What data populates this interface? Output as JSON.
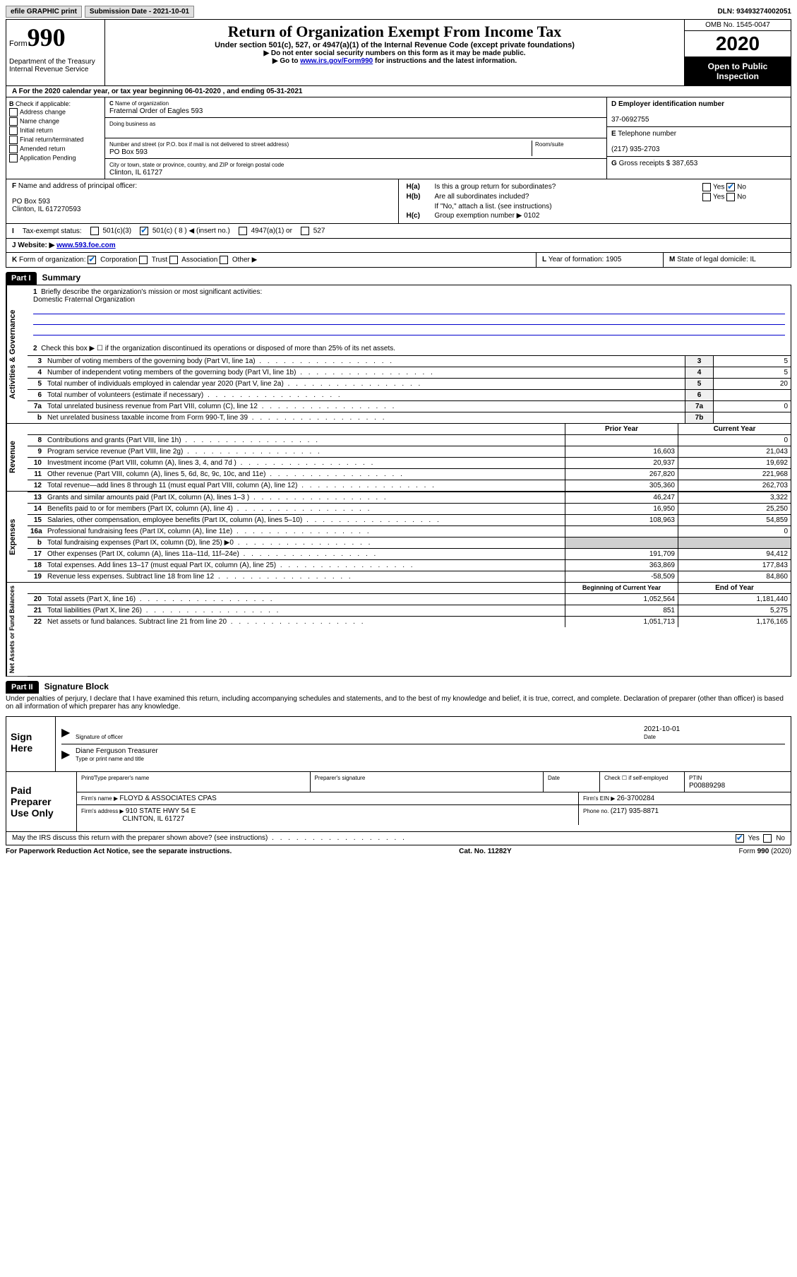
{
  "top": {
    "efile": "efile GRAPHIC print",
    "subdate_label": "Submission Date - ",
    "subdate": "2021-10-01",
    "dln_label": "DLN: ",
    "dln": "93493274002051"
  },
  "header": {
    "form_label": "Form",
    "form_num": "990",
    "dept": "Department of the Treasury\nInternal Revenue Service",
    "title": "Return of Organization Exempt From Income Tax",
    "sub": "Under section 501(c), 527, or 4947(a)(1) of the Internal Revenue Code (except private foundations)",
    "instr1": "Do not enter social security numbers on this form as it may be made public.",
    "instr2_pre": "Go to ",
    "instr2_link": "www.irs.gov/Form990",
    "instr2_post": " for instructions and the latest information.",
    "omb": "OMB No. 1545-0047",
    "year": "2020",
    "open": "Open to Public Inspection"
  },
  "A": {
    "text": "For the 2020 calendar year, or tax year beginning 06-01-2020    , and ending 05-31-2021"
  },
  "B": {
    "label": "Check if applicable:",
    "opts": [
      "Address change",
      "Name change",
      "Initial return",
      "Final return/terminated",
      "Amended return",
      "Application Pending"
    ]
  },
  "C": {
    "name_label": "Name of organization",
    "name": "Fraternal Order of Eagles 593",
    "dba_label": "Doing business as",
    "street_label": "Number and street (or P.O. box if mail is not delivered to street address)",
    "room_label": "Room/suite",
    "street": "PO Box 593",
    "city_label": "City or town, state or province, country, and ZIP or foreign postal code",
    "city": "Clinton, IL  61727"
  },
  "D": {
    "label": "Employer identification number",
    "val": "37-0692755"
  },
  "E": {
    "label": "Telephone number",
    "val": "(217) 935-2703"
  },
  "G": {
    "label": "Gross receipts $ ",
    "val": "387,653"
  },
  "F": {
    "label": "Name and address of principal officer:",
    "addr1": "PO Box 593",
    "addr2": "Clinton, IL  617270593"
  },
  "H": {
    "a": "Is this a group return for subordinates?",
    "b": "Are all subordinates included?",
    "b_note": "If \"No,\" attach a list. (see instructions)",
    "c": "Group exemption number ▶   0102",
    "yes": "Yes",
    "no": "No"
  },
  "I": {
    "label": "Tax-exempt status:",
    "c3": "501(c)(3)",
    "c": "501(c) ( 8 ) ◀ (insert no.)",
    "a1": "4947(a)(1) or",
    "s527": "527"
  },
  "J": {
    "label": "Website: ▶ ",
    "val": "www.593.foe.com"
  },
  "K": {
    "label": "Form of organization:",
    "corp": "Corporation",
    "trust": "Trust",
    "assoc": "Association",
    "other": "Other ▶"
  },
  "L": {
    "label": "Year of formation: ",
    "val": "1905"
  },
  "M": {
    "label": "State of legal domicile: ",
    "val": "IL"
  },
  "part1": {
    "header": "Part I",
    "title": "Summary",
    "q1": "Briefly describe the organization's mission or most significant activities:",
    "q1_ans": "Domestic Fraternal Organization",
    "q2": "Check this box ▶ ☐  if the organization discontinued its operations or disposed of more than 25% of its net assets.",
    "lines": [
      {
        "n": "3",
        "d": "Number of voting members of the governing body (Part VI, line 1a)",
        "box": "3",
        "v": "5"
      },
      {
        "n": "4",
        "d": "Number of independent voting members of the governing body (Part VI, line 1b)",
        "box": "4",
        "v": "5"
      },
      {
        "n": "5",
        "d": "Total number of individuals employed in calendar year 2020 (Part V, line 2a)",
        "box": "5",
        "v": "20"
      },
      {
        "n": "6",
        "d": "Total number of volunteers (estimate if necessary)",
        "box": "6",
        "v": ""
      },
      {
        "n": "7a",
        "d": "Total unrelated business revenue from Part VIII, column (C), line 12",
        "box": "7a",
        "v": "0"
      },
      {
        "n": "b",
        "d": "Net unrelated business taxable income from Form 990-T, line 39",
        "box": "7b",
        "v": ""
      }
    ],
    "col_prior": "Prior Year",
    "col_current": "Current Year",
    "col_beg": "Beginning of Current Year",
    "col_end": "End of Year",
    "rev": [
      {
        "n": "8",
        "d": "Contributions and grants (Part VIII, line 1h)",
        "p": "",
        "c": "0"
      },
      {
        "n": "9",
        "d": "Program service revenue (Part VIII, line 2g)",
        "p": "16,603",
        "c": "21,043"
      },
      {
        "n": "10",
        "d": "Investment income (Part VIII, column (A), lines 3, 4, and 7d )",
        "p": "20,937",
        "c": "19,692"
      },
      {
        "n": "11",
        "d": "Other revenue (Part VIII, column (A), lines 5, 6d, 8c, 9c, 10c, and 11e)",
        "p": "267,820",
        "c": "221,968"
      },
      {
        "n": "12",
        "d": "Total revenue—add lines 8 through 11 (must equal Part VIII, column (A), line 12)",
        "p": "305,360",
        "c": "262,703"
      }
    ],
    "exp": [
      {
        "n": "13",
        "d": "Grants and similar amounts paid (Part IX, column (A), lines 1–3 )",
        "p": "46,247",
        "c": "3,322"
      },
      {
        "n": "14",
        "d": "Benefits paid to or for members (Part IX, column (A), line 4)",
        "p": "16,950",
        "c": "25,250"
      },
      {
        "n": "15",
        "d": "Salaries, other compensation, employee benefits (Part IX, column (A), lines 5–10)",
        "p": "108,963",
        "c": "54,859"
      },
      {
        "n": "16a",
        "d": "Professional fundraising fees (Part IX, column (A), line 11e)",
        "p": "",
        "c": "0"
      },
      {
        "n": "b",
        "d": "Total fundraising expenses (Part IX, column (D), line 25) ▶0",
        "p": "",
        "c": "",
        "shaded": true
      },
      {
        "n": "17",
        "d": "Other expenses (Part IX, column (A), lines 11a–11d, 11f–24e)",
        "p": "191,709",
        "c": "94,412"
      },
      {
        "n": "18",
        "d": "Total expenses. Add lines 13–17 (must equal Part IX, column (A), line 25)",
        "p": "363,869",
        "c": "177,843"
      },
      {
        "n": "19",
        "d": "Revenue less expenses. Subtract line 18 from line 12",
        "p": "-58,509",
        "c": "84,860"
      }
    ],
    "net": [
      {
        "n": "20",
        "d": "Total assets (Part X, line 16)",
        "p": "1,052,564",
        "c": "1,181,440"
      },
      {
        "n": "21",
        "d": "Total liabilities (Part X, line 26)",
        "p": "851",
        "c": "5,275"
      },
      {
        "n": "22",
        "d": "Net assets or fund balances. Subtract line 21 from line 20",
        "p": "1,051,713",
        "c": "1,176,165"
      }
    ],
    "vlabels": {
      "ag": "Activities & Governance",
      "rev": "Revenue",
      "exp": "Expenses",
      "net": "Net Assets or Fund Balances"
    }
  },
  "part2": {
    "header": "Part II",
    "title": "Signature Block",
    "perjury": "Under penalties of perjury, I declare that I have examined this return, including accompanying schedules and statements, and to the best of my knowledge and belief, it is true, correct, and complete. Declaration of preparer (other than officer) is based on all information of which preparer has any knowledge.",
    "sign_here": "Sign Here",
    "sig_officer": "Signature of officer",
    "date": "Date",
    "date_val": "2021-10-01",
    "officer_name": "Diane Ferguson Treasurer",
    "type_name": "Type or print name and title",
    "paid": "Paid Preparer Use Only",
    "print_name": "Print/Type preparer's name",
    "prep_sig": "Preparer's signature",
    "check_self": "Check ☐ if self-employed",
    "ptin_label": "PTIN",
    "ptin": "P00889298",
    "firm_name_label": "Firm's name     ▶ ",
    "firm_name": "FLOYD & ASSOCIATES CPAS",
    "firm_ein_label": "Firm's EIN ▶ ",
    "firm_ein": "26-3700284",
    "firm_addr_label": "Firm's address ▶ ",
    "firm_addr1": "910 STATE HWY 54 E",
    "firm_addr2": "CLINTON, IL  61727",
    "phone_label": "Phone no. ",
    "phone": "(217) 935-8871",
    "discuss": "May the IRS discuss this return with the preparer shown above? (see instructions)"
  },
  "footer": {
    "pra": "For Paperwork Reduction Act Notice, see the separate instructions.",
    "cat": "Cat. No. 11282Y",
    "form": "Form 990 (2020)"
  }
}
